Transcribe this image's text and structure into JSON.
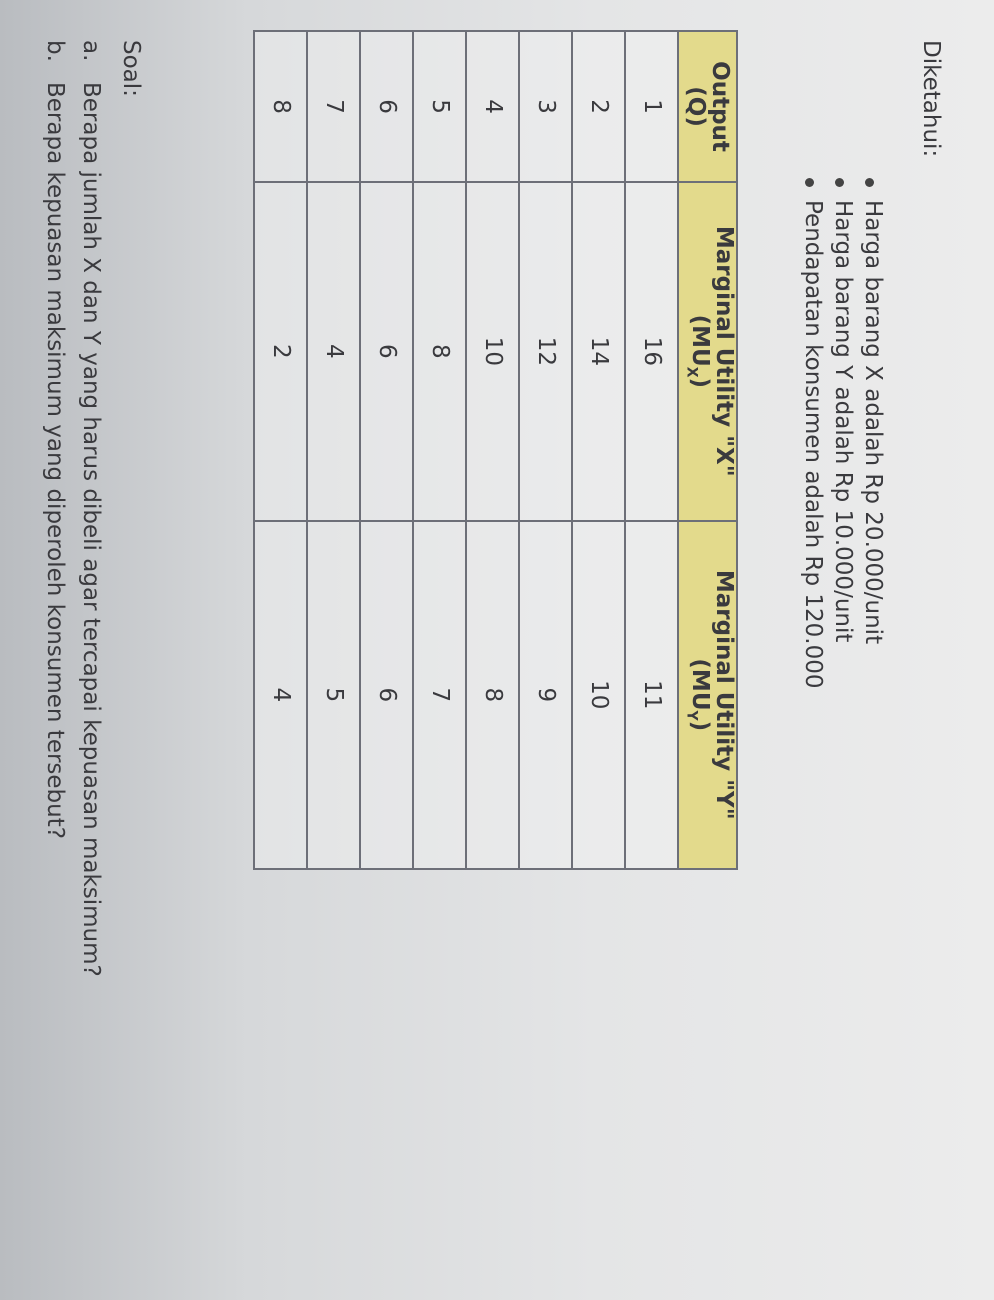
{
  "known_label": "Diketahui:",
  "known_items": [
    "Harga barang X adalah Rp 20.000/unit",
    "Harga barang Y adalah Rp 10.000/unit",
    "Pendapatan konsumen adalah Rp 120.000"
  ],
  "table": {
    "headers": [
      {
        "line1": "Output",
        "line2": "(Q)",
        "sub": ""
      },
      {
        "line1": "Marginal Utility \"X\"",
        "line2": "(MU",
        "sub": "X",
        "close": ")"
      },
      {
        "line1": "Marginal Utility \"Y\"",
        "line2": "(MU",
        "sub": "Y",
        "close": ")"
      }
    ],
    "rows": [
      [
        "1",
        "16",
        "11"
      ],
      [
        "2",
        "14",
        "10"
      ],
      [
        "3",
        "12",
        "9"
      ],
      [
        "4",
        "10",
        "8"
      ],
      [
        "5",
        "8",
        "7"
      ],
      [
        "6",
        "6",
        "6"
      ],
      [
        "7",
        "4",
        "5"
      ],
      [
        "8",
        "2",
        "4"
      ]
    ],
    "header_color": "#e3da8c"
  },
  "questions_label": "Soal:",
  "questions": [
    {
      "marker": "a.",
      "text": "Berapa jumlah X dan Y yang harus dibeli agar tercapai kepuasan maksimum?"
    },
    {
      "marker": "b.",
      "text": "Berapa kepuasan maksimum yang diperoleh konsumen tersebut?"
    }
  ]
}
